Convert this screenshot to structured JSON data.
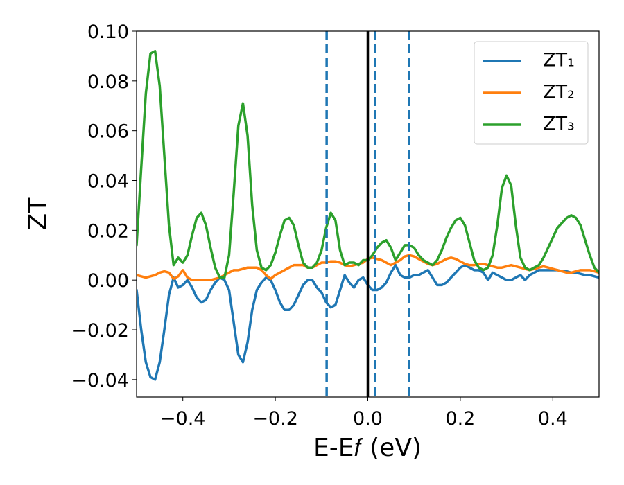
{
  "chart_data": {
    "type": "line",
    "xlabel": "E-E𝑓 (eV)",
    "ylabel": "ZT",
    "xlim": [
      -0.5,
      0.5
    ],
    "ylim": [
      -0.047,
      0.1
    ],
    "xticks": [
      {
        "value": -0.4,
        "label": "−0.4"
      },
      {
        "value": -0.2,
        "label": "−0.2"
      },
      {
        "value": 0.0,
        "label": "0.0"
      },
      {
        "value": 0.2,
        "label": "0.2"
      },
      {
        "value": 0.4,
        "label": "0.4"
      }
    ],
    "yticks": [
      {
        "value": -0.04,
        "label": "−0.04"
      },
      {
        "value": -0.02,
        "label": "−0.02"
      },
      {
        "value": 0.0,
        "label": "0.00"
      },
      {
        "value": 0.02,
        "label": "0.02"
      },
      {
        "value": 0.04,
        "label": "0.04"
      },
      {
        "value": 0.06,
        "label": "0.06"
      },
      {
        "value": 0.08,
        "label": "0.08"
      },
      {
        "value": 0.1,
        "label": "0.10"
      }
    ],
    "grid": false,
    "legend": "upper right",
    "vlines": [
      {
        "x": 0.0,
        "color": "#000000",
        "style": "solid"
      },
      {
        "x": -0.089,
        "color": "#1f77b4",
        "style": "dashed"
      },
      {
        "x": 0.016,
        "color": "#1f77b4",
        "style": "dashed"
      },
      {
        "x": 0.089,
        "color": "#1f77b4",
        "style": "dashed"
      }
    ],
    "x": [
      -0.5,
      -0.49,
      -0.48,
      -0.47,
      -0.46,
      -0.45,
      -0.44,
      -0.43,
      -0.42,
      -0.41,
      -0.4,
      -0.39,
      -0.38,
      -0.37,
      -0.36,
      -0.35,
      -0.34,
      -0.33,
      -0.32,
      -0.31,
      -0.3,
      -0.29,
      -0.28,
      -0.27,
      -0.26,
      -0.25,
      -0.24,
      -0.23,
      -0.22,
      -0.21,
      -0.2,
      -0.19,
      -0.18,
      -0.17,
      -0.16,
      -0.15,
      -0.14,
      -0.13,
      -0.12,
      -0.11,
      -0.1,
      -0.09,
      -0.08,
      -0.07,
      -0.06,
      -0.05,
      -0.04,
      -0.03,
      -0.02,
      -0.01,
      0.0,
      0.01,
      0.02,
      0.03,
      0.04,
      0.05,
      0.06,
      0.07,
      0.08,
      0.09,
      0.1,
      0.11,
      0.12,
      0.13,
      0.14,
      0.15,
      0.16,
      0.17,
      0.18,
      0.19,
      0.2,
      0.21,
      0.22,
      0.23,
      0.24,
      0.25,
      0.26,
      0.27,
      0.28,
      0.29,
      0.3,
      0.31,
      0.32,
      0.33,
      0.34,
      0.35,
      0.36,
      0.37,
      0.38,
      0.39,
      0.4,
      0.41,
      0.42,
      0.43,
      0.44,
      0.45,
      0.46,
      0.47,
      0.48,
      0.49,
      0.5
    ],
    "series": [
      {
        "name": "ZT₁",
        "color": "#1f77b4",
        "values": [
          -0.004,
          -0.02,
          -0.033,
          -0.039,
          -0.04,
          -0.033,
          -0.02,
          -0.006,
          0.001,
          -0.003,
          -0.002,
          0.0,
          -0.003,
          -0.007,
          -0.009,
          -0.008,
          -0.004,
          -0.001,
          0.001,
          0.0,
          -0.004,
          -0.017,
          -0.03,
          -0.033,
          -0.025,
          -0.012,
          -0.004,
          -0.001,
          0.001,
          0.0,
          -0.004,
          -0.009,
          -0.012,
          -0.012,
          -0.01,
          -0.006,
          -0.002,
          0.0,
          0.0,
          -0.003,
          -0.005,
          -0.009,
          -0.011,
          -0.01,
          -0.004,
          0.002,
          -0.001,
          -0.003,
          0.0,
          0.001,
          -0.002,
          -0.004,
          -0.004,
          -0.003,
          -0.001,
          0.003,
          0.006,
          0.002,
          0.001,
          0.001,
          0.002,
          0.002,
          0.003,
          0.004,
          0.001,
          -0.002,
          -0.002,
          -0.001,
          0.001,
          0.003,
          0.005,
          0.006,
          0.005,
          0.004,
          0.004,
          0.003,
          0.0,
          0.003,
          0.002,
          0.001,
          0.0,
          0.0,
          0.001,
          0.002,
          0.0,
          0.002,
          0.003,
          0.004,
          0.004,
          0.004,
          0.004,
          0.004,
          0.0035,
          0.0035,
          0.003,
          0.003,
          0.0025,
          0.002,
          0.002,
          0.0015,
          0.001
        ]
      },
      {
        "name": "ZT₂",
        "color": "#ff7f0e",
        "values": [
          0.002,
          0.0015,
          0.001,
          0.0015,
          0.002,
          0.003,
          0.0035,
          0.003,
          0.0005,
          0.0015,
          0.004,
          0.001,
          0.0,
          0.0,
          0.0,
          0.0,
          0.0,
          0.0005,
          0.001,
          0.002,
          0.003,
          0.004,
          0.004,
          0.0045,
          0.005,
          0.005,
          0.005,
          0.004,
          0.002,
          0.0005,
          0.002,
          0.003,
          0.004,
          0.005,
          0.006,
          0.006,
          0.006,
          0.005,
          0.005,
          0.006,
          0.007,
          0.007,
          0.0075,
          0.0075,
          0.007,
          0.006,
          0.0055,
          0.006,
          0.0065,
          0.007,
          0.0085,
          0.009,
          0.0085,
          0.008,
          0.007,
          0.006,
          0.007,
          0.008,
          0.0095,
          0.01,
          0.0095,
          0.0085,
          0.0075,
          0.0065,
          0.006,
          0.0065,
          0.0075,
          0.0085,
          0.009,
          0.0085,
          0.0075,
          0.0065,
          0.006,
          0.006,
          0.0065,
          0.0065,
          0.006,
          0.0055,
          0.005,
          0.005,
          0.0055,
          0.006,
          0.0055,
          0.005,
          0.0045,
          0.004,
          0.0045,
          0.005,
          0.0055,
          0.005,
          0.0045,
          0.004,
          0.0035,
          0.003,
          0.003,
          0.0035,
          0.004,
          0.004,
          0.004,
          0.0035,
          0.003
        ]
      },
      {
        "name": "ZT₃",
        "color": "#2ca02c",
        "values": [
          0.014,
          0.045,
          0.075,
          0.091,
          0.092,
          0.078,
          0.05,
          0.022,
          0.006,
          0.009,
          0.007,
          0.01,
          0.018,
          0.025,
          0.027,
          0.022,
          0.013,
          0.005,
          0.001,
          0.001,
          0.01,
          0.035,
          0.062,
          0.071,
          0.058,
          0.03,
          0.012,
          0.005,
          0.004,
          0.006,
          0.011,
          0.018,
          0.024,
          0.025,
          0.022,
          0.014,
          0.007,
          0.005,
          0.005,
          0.007,
          0.012,
          0.021,
          0.027,
          0.024,
          0.012,
          0.006,
          0.007,
          0.007,
          0.006,
          0.008,
          0.008,
          0.01,
          0.013,
          0.015,
          0.016,
          0.013,
          0.008,
          0.011,
          0.014,
          0.014,
          0.013,
          0.01,
          0.008,
          0.007,
          0.006,
          0.008,
          0.012,
          0.017,
          0.021,
          0.024,
          0.025,
          0.022,
          0.015,
          0.008,
          0.005,
          0.004,
          0.005,
          0.01,
          0.022,
          0.037,
          0.042,
          0.038,
          0.022,
          0.009,
          0.005,
          0.004,
          0.005,
          0.006,
          0.009,
          0.013,
          0.017,
          0.021,
          0.023,
          0.025,
          0.026,
          0.025,
          0.022,
          0.016,
          0.01,
          0.005,
          0.003
        ]
      }
    ]
  }
}
